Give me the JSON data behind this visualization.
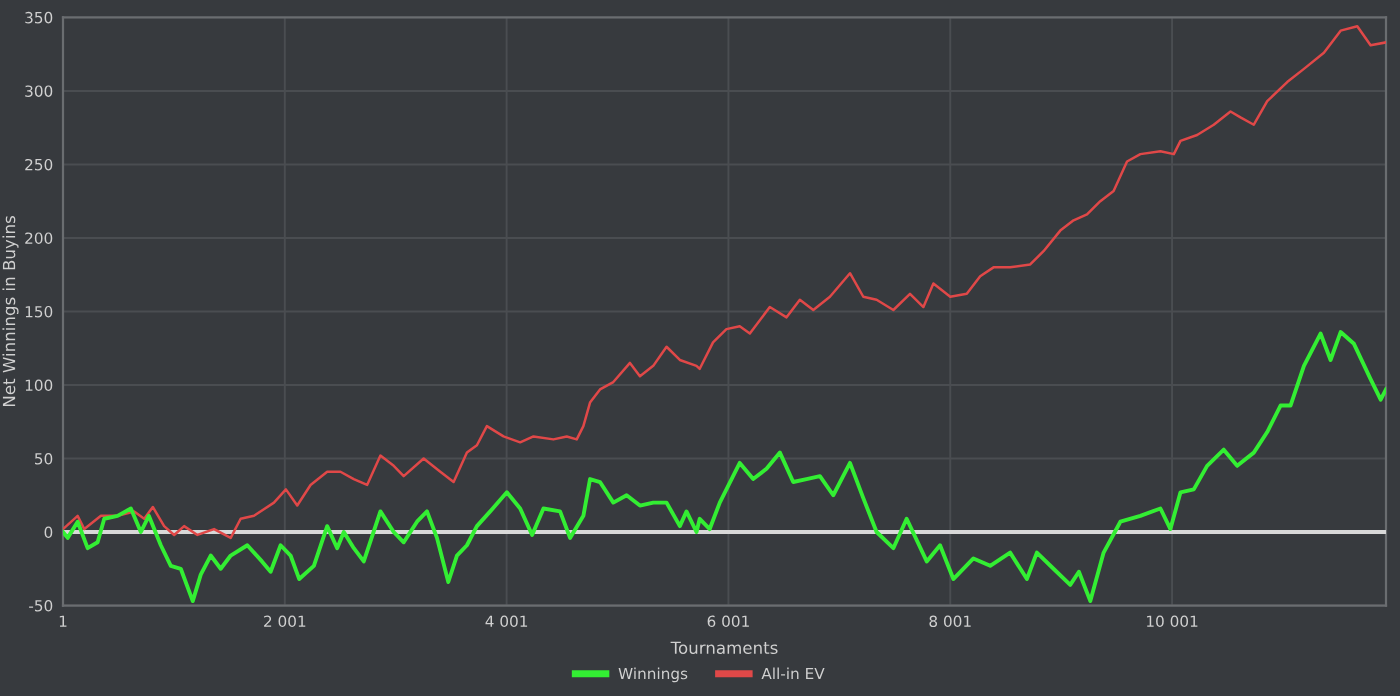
{
  "chart_data": {
    "type": "line",
    "xlabel": "Tournaments",
    "ylabel": "Net Winnings in Buyins",
    "xlim": [
      1,
      11930
    ],
    "ylim": [
      -50,
      350
    ],
    "xticks": [
      1,
      {
        "value": 2001,
        "label": "2 001"
      },
      {
        "value": 4001,
        "label": "4 001"
      },
      {
        "value": 6001,
        "label": "6 001"
      },
      {
        "value": 8001,
        "label": "8 001"
      },
      {
        "value": 10001,
        "label": "10 001"
      }
    ],
    "yticks": [
      -50,
      0,
      50,
      100,
      150,
      200,
      250,
      300,
      350
    ],
    "grid": true,
    "legend": "bottom",
    "marker": "none",
    "line_style": "solid",
    "ref_lines": [
      {
        "axis": "y",
        "value": 0,
        "color": "#d8d8d8"
      }
    ],
    "series": [
      {
        "name": "Winnings",
        "color": "#33ee33",
        "x": [
          1,
          43,
          133,
          223,
          313,
          373,
          493,
          613,
          703,
          775,
          883,
          973,
          1063,
          1171,
          1243,
          1333,
          1423,
          1513,
          1663,
          1795,
          1873,
          1963,
          2053,
          2131,
          2263,
          2383,
          2473,
          2533,
          2623,
          2713,
          2863,
          2983,
          3073,
          3193,
          3283,
          3373,
          3475,
          3553,
          3643,
          3733,
          3853,
          4003,
          4123,
          4231,
          4333,
          4483,
          4573,
          4693,
          4753,
          4843,
          4963,
          5083,
          5203,
          5323,
          5443,
          5563,
          5623,
          5713,
          5742,
          5832,
          5923,
          6103,
          6224,
          6344,
          6465,
          6585,
          6705,
          6826,
          6946,
          7097,
          7217,
          7337,
          7488,
          7608,
          7789,
          7909,
          8029,
          8210,
          8361,
          8541,
          8692,
          8782,
          8932,
          9083,
          9161,
          9264,
          9384,
          9535,
          9715,
          9896,
          9986,
          10077,
          10197,
          10317,
          10467,
          10588,
          10738,
          10859,
          10979,
          11069,
          11190,
          11340,
          11430,
          11521,
          11641,
          11791,
          11882,
          11930
        ],
        "values": [
          0,
          -4,
          7,
          -11,
          -7,
          9,
          11,
          16,
          0,
          11,
          -9,
          -23,
          -25,
          -47,
          -29,
          -16,
          -25,
          -16,
          -9,
          -20,
          -27,
          -9,
          -16,
          -32,
          -23,
          4,
          -11,
          0,
          -11,
          -20,
          14,
          0,
          -7,
          7,
          14,
          -4,
          -34,
          -16,
          -9,
          4,
          14,
          27,
          16,
          -2,
          16,
          14,
          -4,
          11,
          36,
          34,
          20,
          25,
          18,
          20,
          20,
          4,
          14,
          0,
          9,
          2,
          20,
          47,
          36,
          43,
          54,
          34,
          36,
          38,
          25,
          47,
          23,
          0,
          -11,
          9,
          -20,
          -9,
          -32,
          -18,
          -23,
          -14,
          -32,
          -14,
          -25,
          -36,
          -27,
          -47,
          -14,
          7,
          11,
          16,
          2,
          27,
          29,
          45,
          56,
          45,
          54,
          68,
          86,
          86,
          113,
          135,
          117,
          136,
          128,
          104,
          90,
          97
        ]
      },
      {
        "name": "All-in EV",
        "color": "#e04848",
        "x": [
          1,
          133,
          193,
          343,
          493,
          643,
          733,
          811,
          913,
          1003,
          1093,
          1213,
          1363,
          1513,
          1603,
          1723,
          1903,
          2011,
          2113,
          2233,
          2383,
          2503,
          2623,
          2743,
          2863,
          2983,
          3073,
          3253,
          3403,
          3523,
          3643,
          3733,
          3823,
          3973,
          4123,
          4243,
          4423,
          4543,
          4633,
          4693,
          4753,
          4843,
          4963,
          5113,
          5203,
          5323,
          5443,
          5563,
          5713,
          5742,
          5862,
          5983,
          6103,
          6194,
          6374,
          6525,
          6645,
          6766,
          6916,
          7097,
          7217,
          7337,
          7488,
          7638,
          7759,
          7849,
          8001,
          8150,
          8271,
          8391,
          8541,
          8722,
          8842,
          8993,
          9113,
          9234,
          9354,
          9474,
          9595,
          9715,
          9896,
          10017,
          10077,
          10227,
          10377,
          10528,
          10618,
          10738,
          10859,
          11039,
          11190,
          11370,
          11521,
          11671,
          11791,
          11930
        ],
        "values": [
          2,
          11,
          2,
          11,
          11,
          14,
          9,
          17,
          4,
          -2,
          4,
          -2,
          2,
          -4,
          9,
          11,
          20,
          29,
          18,
          32,
          41,
          41,
          36,
          32,
          52,
          45,
          38,
          50,
          41,
          34,
          54,
          59,
          72,
          65,
          61,
          65,
          63,
          65,
          63,
          72,
          88,
          97,
          102,
          115,
          106,
          113,
          126,
          117,
          113,
          111,
          129,
          138,
          140,
          135,
          153,
          146,
          158,
          151,
          160,
          176,
          160,
          158,
          151,
          162,
          153,
          169,
          160,
          162,
          174,
          180,
          180,
          182,
          191,
          205,
          212,
          216,
          225,
          232,
          252,
          257,
          259,
          257,
          266,
          270,
          277,
          286,
          282,
          277,
          293,
          306,
          315,
          326,
          341,
          344,
          331,
          333
        ]
      }
    ]
  }
}
